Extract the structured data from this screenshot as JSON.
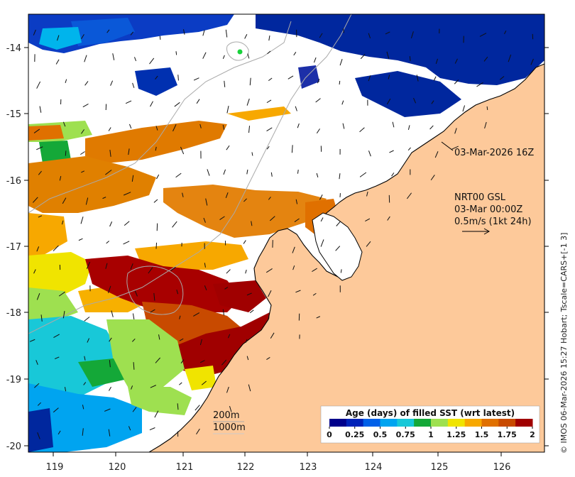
{
  "map": {
    "lon_labels": [
      "119",
      "120",
      "121",
      "122",
      "123",
      "124",
      "125",
      "126"
    ],
    "lat_labels": [
      "-14",
      "-15",
      "-16",
      "-17",
      "-18",
      "-19",
      "-20"
    ],
    "lon_range": [
      118.65,
      126.8
    ],
    "lat_range": [
      -20.05,
      -13.5
    ],
    "observation_label": "03-Mar-2026 16Z",
    "current_info": [
      "NRT00 GSL",
      "03-Mar 00:00Z",
      "0.5m/s (1kt 24h)"
    ],
    "depth_contours": [
      "200m",
      "1000m"
    ],
    "credit": "© IMOS 06-Mar-2026 15:27 Hobart; Tscale=CARS+[-1 3]",
    "land_color": "#fdc99a",
    "ocean_nodata_color": "#ffffff"
  },
  "legend": {
    "title": "Age (days) of filled SST (wrt latest)",
    "ticks": [
      "0",
      "0.25",
      "0.5",
      "0.75",
      "1",
      "1.25",
      "1.5",
      "1.75",
      "2"
    ],
    "range": [
      0,
      2
    ],
    "colors": [
      "#00008b",
      "#0022b8",
      "#0060e8",
      "#00a4f0",
      "#18c8d8",
      "#14a838",
      "#9ee050",
      "#f0e400",
      "#f7a800",
      "#e07000",
      "#c84a00",
      "#a00000"
    ]
  }
}
